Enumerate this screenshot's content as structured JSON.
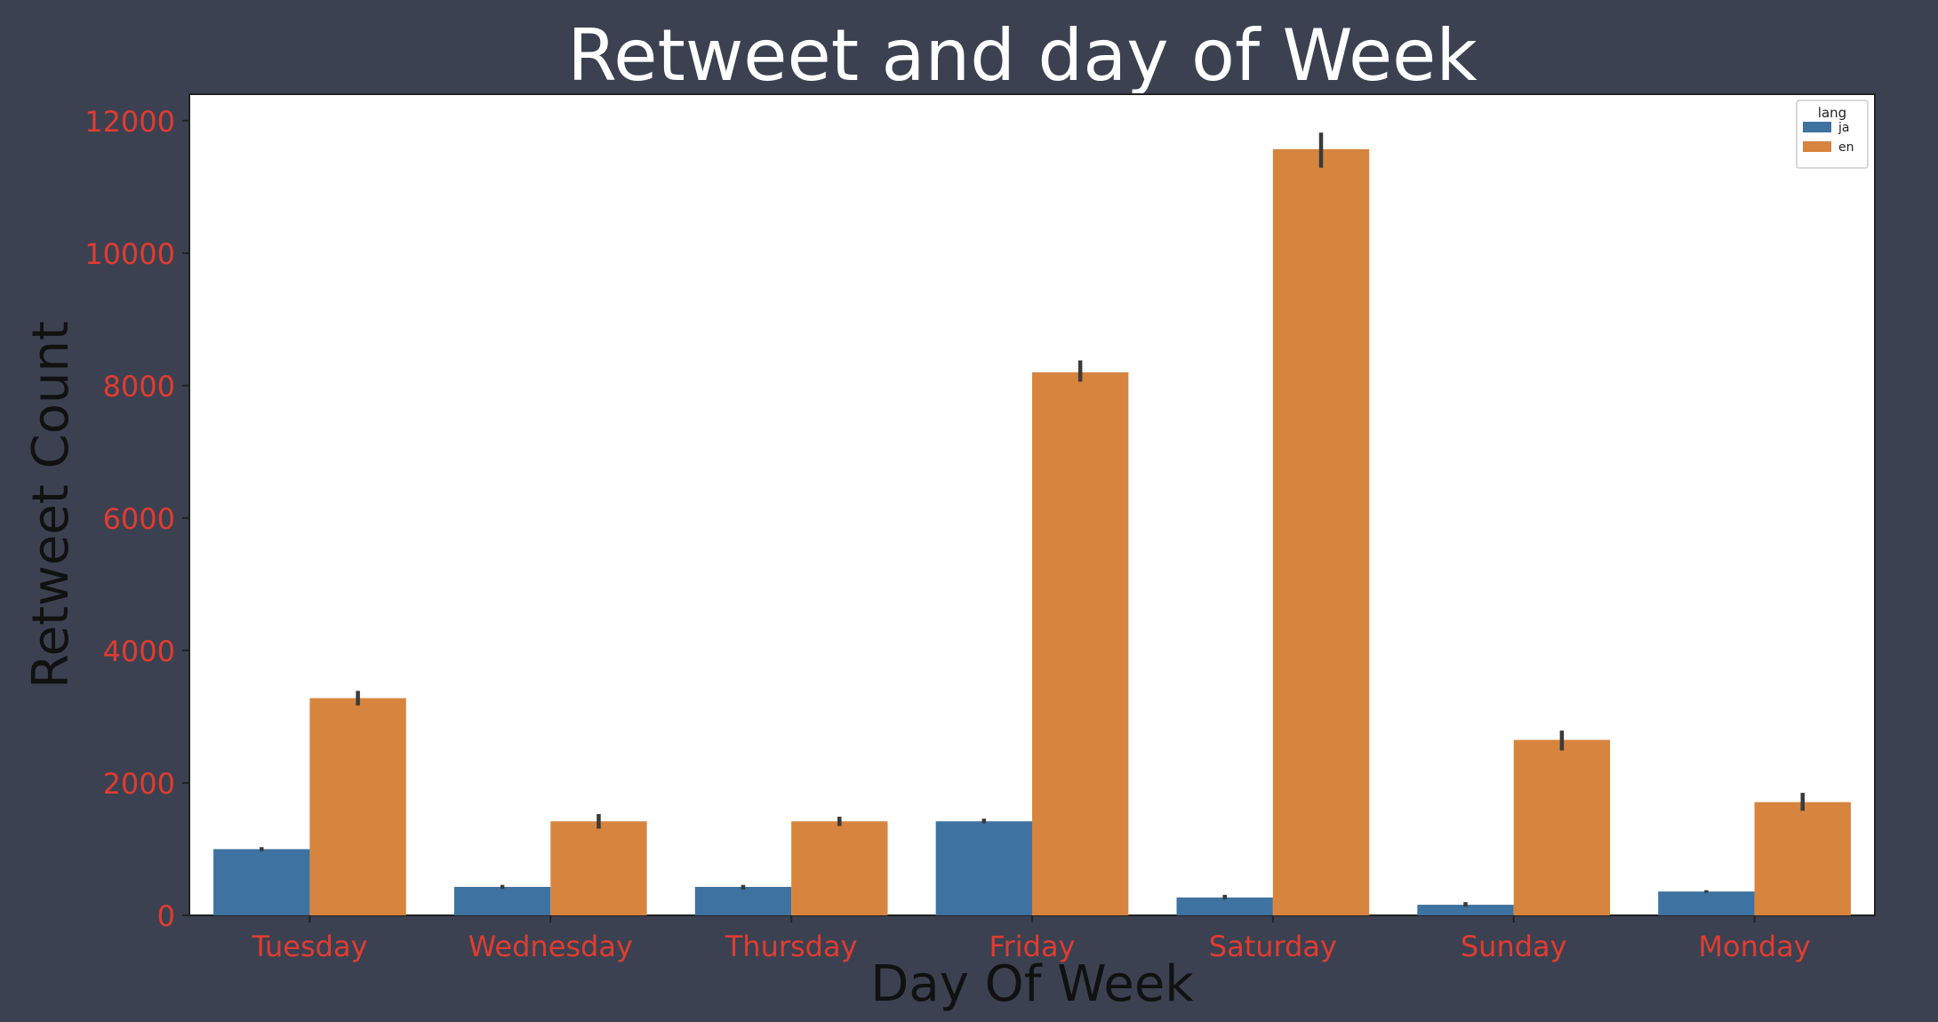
{
  "chart_data": {
    "type": "bar",
    "title": "Retweet and day of Week",
    "xlabel": "Day Of Week",
    "ylabel": "Retweet Count",
    "categories": [
      "Tuesday",
      "Wednesday",
      "Thursday",
      "Friday",
      "Saturday",
      "Sunday",
      "Monday"
    ],
    "series": [
      {
        "name": "ja",
        "color": "#3e72a0",
        "values": [
          1000,
          430,
          430,
          1420,
          270,
          160,
          360
        ],
        "err_low": [
          970,
          400,
          390,
          1390,
          240,
          130,
          340
        ],
        "err_high": [
          1030,
          460,
          460,
          1460,
          310,
          200,
          380
        ]
      },
      {
        "name": "en",
        "color": "#d6843e",
        "values": [
          3280,
          1420,
          1420,
          8200,
          11570,
          2650,
          1710
        ],
        "err_low": [
          3170,
          1310,
          1350,
          8060,
          11290,
          2490,
          1580
        ],
        "err_high": [
          3390,
          1530,
          1490,
          8380,
          11820,
          2790,
          1850
        ]
      }
    ],
    "yticks": [
      0,
      2000,
      4000,
      6000,
      8000,
      10000,
      12000
    ],
    "ylim": [
      0,
      12400
    ],
    "legend": {
      "title": "lang",
      "position": "top-right"
    },
    "colors": {
      "background": "#3b4150",
      "plot_area": "#ffffff",
      "tick_label": "#e03c31",
      "title": "#ffffff",
      "axis_label": "#111111",
      "error_bar": "#3a3a3a"
    }
  }
}
